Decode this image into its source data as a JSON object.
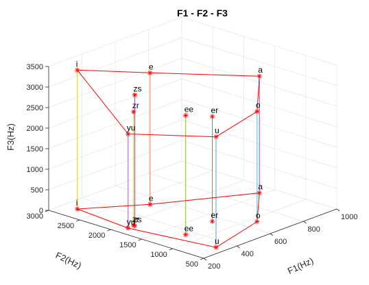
{
  "chart_data": {
    "type": "scatter",
    "title": "F1 - F2 - F3",
    "xlabel": "F1(Hz)",
    "ylabel": "F2(Hz)",
    "zlabel": "F3(Hz)",
    "xlim": [
      200,
      1000
    ],
    "ylim": [
      500,
      3000
    ],
    "zlim": [
      0,
      3500
    ],
    "x_ticks": [
      "200",
      "400",
      "600",
      "800",
      "1000"
    ],
    "y_ticks": [
      "500",
      "1000",
      "1500",
      "2000",
      "2500",
      "3000"
    ],
    "z_ticks": [
      "0",
      "500",
      "1000",
      "1500",
      "2000",
      "2500",
      "3000",
      "3500"
    ],
    "grid": true,
    "points": [
      {
        "label": "i",
        "F1": 290,
        "F2": 2780,
        "F3": 3380,
        "stem_color": "#e5c63d"
      },
      {
        "label": "e",
        "F1": 530,
        "F2": 2250,
        "F3": 3200,
        "stem_color": "#e27a5a"
      },
      {
        "label": "a",
        "F1": 930,
        "F2": 1560,
        "F3": 2840,
        "stem_color": "#8e5aa6"
      },
      {
        "label": "o",
        "F1": 670,
        "F2": 900,
        "F3": 2680,
        "stem_color": "#5ab8d8"
      },
      {
        "label": "u",
        "F1": 330,
        "F2": 650,
        "F3": 2690,
        "stem_color": "#4ca3d8"
      },
      {
        "label": "yu",
        "F1": 260,
        "F2": 1880,
        "F3": 2290,
        "stem_color": "#a05ad0"
      },
      {
        "label": "er",
        "F1": 550,
        "F2": 1300,
        "F3": 2550,
        "stem_color": "#e8602b"
      },
      {
        "label": "ee",
        "F1": 360,
        "F2": 1220,
        "F3": 2900,
        "stem_color": "#7fc240"
      },
      {
        "label": "zr",
        "F1": 300,
        "F2": 1900,
        "F3": 2760,
        "stem_color": "#e5c63d"
      },
      {
        "label": "zs",
        "F1": 300,
        "F2": 1880,
        "F3": 3180,
        "stem_color": "#8e5aa6"
      }
    ],
    "polygon_order": [
      "i",
      "e",
      "a",
      "o",
      "u",
      "yu",
      "i"
    ],
    "polygon_color": "#ff0000"
  }
}
